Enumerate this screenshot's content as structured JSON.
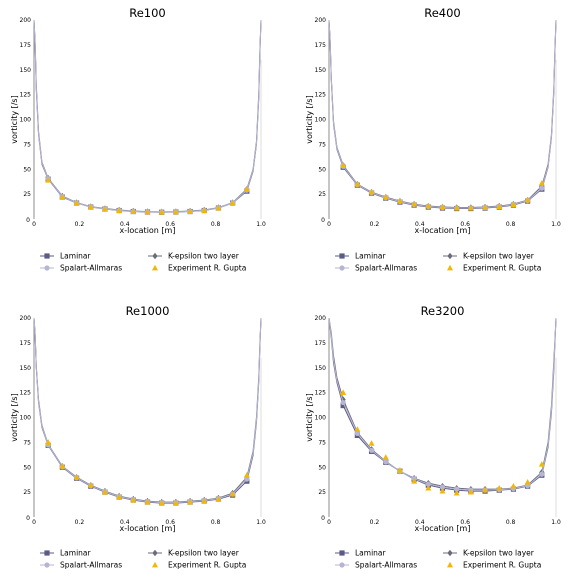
{
  "figure": {
    "colors": {
      "laminar": "#5b5b85",
      "spalart": "#b6b6d3",
      "kepsilon": "#6b6b7c",
      "experiment": "#f2b705",
      "axis": "#444444"
    }
  },
  "chart_data": [
    {
      "type": "line",
      "title": "Re100",
      "xlabel": "x-location [m]",
      "ylabel": "vorticity [/s]",
      "xlim": [
        0,
        1
      ],
      "ylim": [
        0,
        200
      ],
      "xticks": [
        "0",
        "0.2",
        "0.4",
        "0.6",
        "0.8",
        "1.0"
      ],
      "yticks": [
        "25",
        "50",
        "75",
        "100",
        "125",
        "150",
        "175",
        "200"
      ],
      "extra_ytick_labels": [
        "0"
      ],
      "legend": {
        "location": "below",
        "entries": [
          "Laminar",
          "K-epsilon two layer",
          "Spalart-Allmaras",
          "Experiment R. Gupta"
        ]
      },
      "series": [
        {
          "name": "Laminar",
          "marker": "square",
          "x": [
            0,
            0.005,
            0.01,
            0.02,
            0.035,
            0.0625,
            0.125,
            0.1875,
            0.25,
            0.3125,
            0.375,
            0.4375,
            0.5,
            0.5625,
            0.625,
            0.6875,
            0.75,
            0.8125,
            0.875,
            0.9375,
            0.965,
            0.98,
            0.99,
            0.995,
            1.0
          ],
          "y": [
            200,
            175,
            130,
            85,
            55,
            40,
            22,
            16,
            12,
            10,
            8.5,
            7.5,
            7,
            6.8,
            7,
            7.5,
            8.5,
            11,
            16,
            28,
            48,
            75,
            120,
            165,
            200
          ]
        },
        {
          "name": "K-epsilon two layer",
          "marker": "diamond",
          "x": [
            0,
            0.005,
            0.01,
            0.02,
            0.035,
            0.0625,
            0.125,
            0.1875,
            0.25,
            0.3125,
            0.375,
            0.4375,
            0.5,
            0.5625,
            0.625,
            0.6875,
            0.75,
            0.8125,
            0.875,
            0.9375,
            0.965,
            0.98,
            0.99,
            0.995,
            1.0
          ],
          "y": [
            200,
            178,
            135,
            88,
            57,
            41,
            23,
            16.5,
            12.5,
            10.5,
            9,
            8,
            7.4,
            7.2,
            7.4,
            8,
            9,
            11.5,
            16.5,
            30,
            50,
            78,
            125,
            170,
            200
          ]
        },
        {
          "name": "Spalart-Allmaras",
          "marker": "circle",
          "x": [
            0,
            0.005,
            0.01,
            0.02,
            0.035,
            0.0625,
            0.125,
            0.1875,
            0.25,
            0.3125,
            0.375,
            0.4375,
            0.5,
            0.5625,
            0.625,
            0.6875,
            0.75,
            0.8125,
            0.875,
            0.9375,
            0.965,
            0.98,
            0.99,
            0.995,
            1.0
          ],
          "y": [
            200,
            176,
            132,
            86,
            56,
            40.5,
            22.5,
            16.2,
            12.2,
            10.2,
            8.7,
            7.7,
            7.2,
            7,
            7.2,
            7.7,
            8.7,
            11.2,
            16.2,
            29,
            49,
            76,
            122,
            167,
            200
          ]
        },
        {
          "name": "Experiment R. Gupta",
          "marker": "triangle",
          "markers_only": true,
          "x": [
            0.0625,
            0.125,
            0.1875,
            0.25,
            0.3125,
            0.375,
            0.4375,
            0.5,
            0.5625,
            0.625,
            0.6875,
            0.75,
            0.8125,
            0.875,
            0.9375
          ],
          "y": [
            39,
            22,
            16,
            12,
            10,
            8.5,
            7.5,
            7,
            6.8,
            7,
            7.5,
            8.5,
            11,
            16,
            30
          ]
        }
      ]
    },
    {
      "type": "line",
      "title": "Re400",
      "xlabel": "x-location [m]",
      "ylabel": "vorticity [/s]",
      "xlim": [
        0,
        1
      ],
      "ylim": [
        0,
        200
      ],
      "xticks": [
        "0",
        "0.2",
        "0.4",
        "0.6",
        "0.8",
        "1.0"
      ],
      "yticks": [
        "25",
        "50",
        "75",
        "100",
        "125",
        "150",
        "175",
        "200"
      ],
      "extra_ytick_labels": [
        "0"
      ],
      "legend": {
        "location": "below",
        "entries": [
          "Laminar",
          "K-epsilon two layer",
          "Spalart-Allmaras",
          "Experiment R. Gupta"
        ]
      },
      "series": [
        {
          "name": "Laminar",
          "marker": "square",
          "x": [
            0,
            0.005,
            0.01,
            0.02,
            0.035,
            0.0625,
            0.125,
            0.1875,
            0.25,
            0.3125,
            0.375,
            0.4375,
            0.5,
            0.5625,
            0.625,
            0.6875,
            0.75,
            0.8125,
            0.875,
            0.9375,
            0.965,
            0.98,
            0.99,
            0.995,
            1.0
          ],
          "y": [
            200,
            178,
            140,
            95,
            70,
            52,
            34,
            26,
            21,
            17,
            14,
            12,
            11,
            10.5,
            10.5,
            11,
            12,
            14,
            18,
            30,
            52,
            82,
            125,
            165,
            200
          ]
        },
        {
          "name": "K-epsilon two layer",
          "marker": "diamond",
          "x": [
            0,
            0.005,
            0.01,
            0.02,
            0.035,
            0.0625,
            0.125,
            0.1875,
            0.25,
            0.3125,
            0.375,
            0.4375,
            0.5,
            0.5625,
            0.625,
            0.6875,
            0.75,
            0.8125,
            0.875,
            0.9375,
            0.965,
            0.98,
            0.99,
            0.995,
            1.0
          ],
          "y": [
            200,
            180,
            143,
            98,
            72,
            54,
            35,
            27,
            22,
            18,
            15,
            13,
            12,
            11.5,
            11.5,
            12,
            13,
            15,
            19,
            33,
            55,
            85,
            130,
            170,
            200
          ]
        },
        {
          "name": "Spalart-Allmaras",
          "marker": "circle",
          "x": [
            0,
            0.005,
            0.01,
            0.02,
            0.035,
            0.0625,
            0.125,
            0.1875,
            0.25,
            0.3125,
            0.375,
            0.4375,
            0.5,
            0.5625,
            0.625,
            0.6875,
            0.75,
            0.8125,
            0.875,
            0.9375,
            0.965,
            0.98,
            0.99,
            0.995,
            1.0
          ],
          "y": [
            200,
            179,
            141,
            96,
            71,
            53,
            34.5,
            26.5,
            21.5,
            17.5,
            14.5,
            12.5,
            11.5,
            11,
            11,
            11.5,
            12.5,
            14.5,
            18.5,
            31,
            53,
            83,
            127,
            167,
            200
          ]
        },
        {
          "name": "Experiment R. Gupta",
          "marker": "triangle",
          "markers_only": true,
          "x": [
            0.0625,
            0.125,
            0.1875,
            0.25,
            0.3125,
            0.375,
            0.4375,
            0.5,
            0.5625,
            0.625,
            0.6875,
            0.75,
            0.8125,
            0.875,
            0.9375
          ],
          "y": [
            54,
            35,
            27,
            22,
            18,
            15,
            13,
            12,
            11,
            11,
            11.5,
            12.5,
            14.5,
            19,
            36
          ]
        }
      ]
    },
    {
      "type": "line",
      "title": "Re1000",
      "xlabel": "x-location [m]",
      "ylabel": "vorticity [/s]",
      "xlim": [
        0,
        1
      ],
      "ylim": [
        0,
        200
      ],
      "xticks": [
        "0",
        "0.2",
        "0.4",
        "0.6",
        "0.8",
        "1.0"
      ],
      "yticks": [
        "25",
        "50",
        "75",
        "100",
        "125",
        "150",
        "175",
        "200"
      ],
      "extra_ytick_labels": [
        "0"
      ],
      "legend": {
        "location": "below",
        "entries": [
          "Laminar",
          "K-epsilon two layer",
          "Spalart-Allmaras",
          "Experiment R. Gupta"
        ]
      },
      "series": [
        {
          "name": "Laminar",
          "marker": "square",
          "x": [
            0,
            0.005,
            0.01,
            0.02,
            0.035,
            0.0625,
            0.125,
            0.1875,
            0.25,
            0.3125,
            0.375,
            0.4375,
            0.5,
            0.5625,
            0.625,
            0.6875,
            0.75,
            0.8125,
            0.875,
            0.9375,
            0.965,
            0.98,
            0.99,
            0.995,
            1.0
          ],
          "y": [
            200,
            182,
            150,
            115,
            90,
            72,
            50,
            39,
            31,
            25,
            20,
            17,
            15,
            14,
            14,
            15,
            16,
            18,
            22,
            36,
            62,
            95,
            135,
            170,
            200
          ]
        },
        {
          "name": "K-epsilon two layer",
          "marker": "diamond",
          "x": [
            0,
            0.005,
            0.01,
            0.02,
            0.035,
            0.0625,
            0.125,
            0.1875,
            0.25,
            0.3125,
            0.375,
            0.4375,
            0.5,
            0.5625,
            0.625,
            0.6875,
            0.75,
            0.8125,
            0.875,
            0.9375,
            0.965,
            0.98,
            0.99,
            0.995,
            1.0
          ],
          "y": [
            200,
            184,
            152,
            118,
            92,
            73,
            51,
            40,
            32,
            26,
            21,
            18,
            16,
            15,
            15,
            16,
            17,
            19,
            24,
            40,
            66,
            100,
            140,
            175,
            200
          ]
        },
        {
          "name": "Spalart-Allmaras",
          "marker": "circle",
          "x": [
            0,
            0.005,
            0.01,
            0.02,
            0.035,
            0.0625,
            0.125,
            0.1875,
            0.25,
            0.3125,
            0.375,
            0.4375,
            0.5,
            0.5625,
            0.625,
            0.6875,
            0.75,
            0.8125,
            0.875,
            0.9375,
            0.965,
            0.98,
            0.99,
            0.995,
            1.0
          ],
          "y": [
            200,
            183,
            151,
            116,
            91,
            72.5,
            50.5,
            39.5,
            31.5,
            25.5,
            20.5,
            17.5,
            15.5,
            14.5,
            14.5,
            15.5,
            16.5,
            18.5,
            23,
            38,
            64,
            97,
            137,
            172,
            200
          ]
        },
        {
          "name": "Experiment R. Gupta",
          "marker": "triangle",
          "markers_only": true,
          "x": [
            0.0625,
            0.125,
            0.1875,
            0.25,
            0.3125,
            0.375,
            0.4375,
            0.5,
            0.5625,
            0.625,
            0.6875,
            0.75,
            0.8125,
            0.875,
            0.9375
          ],
          "y": [
            75,
            51,
            40,
            32,
            25,
            20,
            17,
            15,
            14,
            14,
            15,
            16,
            18,
            23,
            42
          ]
        }
      ]
    },
    {
      "type": "line",
      "title": "Re3200",
      "xlabel": "x-location [m]",
      "ylabel": "vorticity [/s]",
      "xlim": [
        0,
        1
      ],
      "ylim": [
        0,
        200
      ],
      "xticks": [
        "0",
        "0.2",
        "0.4",
        "0.6",
        "0.8",
        "1.0"
      ],
      "yticks": [
        "25",
        "50",
        "75",
        "100",
        "125",
        "150",
        "175",
        "200"
      ],
      "extra_ytick_labels": [
        "0"
      ],
      "legend": {
        "location": "below",
        "entries": [
          "Laminar",
          "K-epsilon two layer",
          "Spalart-Allmaras",
          "Experiment R. Gupta"
        ]
      },
      "series": [
        {
          "name": "Laminar",
          "marker": "square",
          "x": [
            0,
            0.01,
            0.02,
            0.035,
            0.0625,
            0.125,
            0.1875,
            0.25,
            0.3125,
            0.375,
            0.4375,
            0.5,
            0.5625,
            0.625,
            0.6875,
            0.75,
            0.8125,
            0.875,
            0.9375,
            0.965,
            0.98,
            0.99,
            1.0
          ],
          "y": [
            200,
            180,
            155,
            135,
            112,
            82,
            66,
            55,
            46,
            38,
            32,
            29,
            27,
            26,
            26,
            27,
            28,
            31,
            42,
            70,
            105,
            145,
            200
          ]
        },
        {
          "name": "K-epsilon two layer",
          "marker": "diamond",
          "x": [
            0,
            0.01,
            0.02,
            0.035,
            0.0625,
            0.125,
            0.1875,
            0.25,
            0.3125,
            0.375,
            0.4375,
            0.5,
            0.5625,
            0.625,
            0.6875,
            0.75,
            0.8125,
            0.875,
            0.9375,
            0.965,
            0.98,
            0.99,
            1.0
          ],
          "y": [
            200,
            185,
            162,
            140,
            118,
            85,
            68,
            56,
            46,
            39,
            34,
            31,
            29,
            28,
            28,
            28,
            29,
            32,
            45,
            75,
            112,
            155,
            200
          ]
        },
        {
          "name": "Spalart-Allmaras",
          "marker": "circle",
          "x": [
            0,
            0.01,
            0.02,
            0.035,
            0.0625,
            0.125,
            0.1875,
            0.25,
            0.3125,
            0.375,
            0.4375,
            0.5,
            0.5625,
            0.625,
            0.6875,
            0.75,
            0.8125,
            0.875,
            0.9375,
            0.965,
            0.98,
            0.99,
            1.0
          ],
          "y": [
            200,
            182,
            158,
            137,
            115,
            84,
            67,
            55.5,
            46,
            38.5,
            33,
            30,
            28,
            27,
            27,
            27.5,
            28.5,
            31.5,
            43,
            72,
            108,
            150,
            200
          ]
        },
        {
          "name": "Experiment R. Gupta",
          "marker": "triangle",
          "markers_only": true,
          "x": [
            0.0625,
            0.125,
            0.1875,
            0.25,
            0.3125,
            0.375,
            0.4375,
            0.5,
            0.5625,
            0.625,
            0.6875,
            0.75,
            0.8125,
            0.875,
            0.9375
          ],
          "y": [
            125,
            88,
            74,
            60,
            47,
            36,
            29,
            26,
            24,
            25,
            27,
            29,
            31,
            35,
            53
          ]
        }
      ]
    }
  ]
}
